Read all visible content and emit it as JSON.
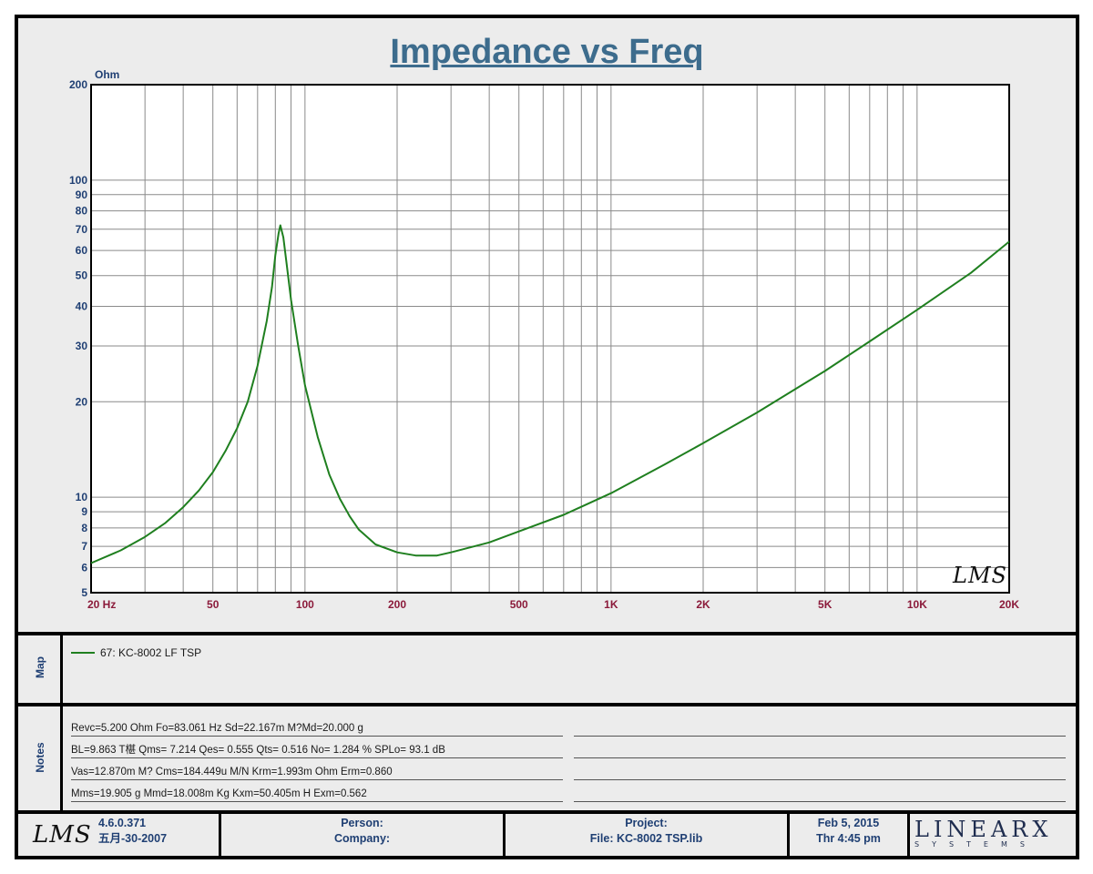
{
  "title": "Impedance vs Freq",
  "chart_data": {
    "type": "line",
    "ylabel": "Ohm",
    "xscale": "log",
    "yscale": "log",
    "xlim": [
      20,
      20000
    ],
    "ylim": [
      5,
      200
    ],
    "grid": true,
    "x_tick_labels": [
      {
        "value": 20,
        "label": "20  Hz"
      },
      {
        "value": 50,
        "label": "50"
      },
      {
        "value": 100,
        "label": "100"
      },
      {
        "value": 200,
        "label": "200"
      },
      {
        "value": 500,
        "label": "500"
      },
      {
        "value": 1000,
        "label": "1K"
      },
      {
        "value": 2000,
        "label": "2K"
      },
      {
        "value": 5000,
        "label": "5K"
      },
      {
        "value": 10000,
        "label": "10K"
      },
      {
        "value": 20000,
        "label": "20K"
      }
    ],
    "y_tick_labels": [
      {
        "value": 5,
        "label": "5"
      },
      {
        "value": 6,
        "label": "6"
      },
      {
        "value": 7,
        "label": "7"
      },
      {
        "value": 8,
        "label": "8"
      },
      {
        "value": 9,
        "label": "9"
      },
      {
        "value": 10,
        "label": "10"
      },
      {
        "value": 20,
        "label": "20"
      },
      {
        "value": 30,
        "label": "30"
      },
      {
        "value": 40,
        "label": "40"
      },
      {
        "value": 50,
        "label": "50"
      },
      {
        "value": 60,
        "label": "60"
      },
      {
        "value": 70,
        "label": "70"
      },
      {
        "value": 80,
        "label": "80"
      },
      {
        "value": 90,
        "label": "90"
      },
      {
        "value": 100,
        "label": "100"
      },
      {
        "value": 200,
        "label": "200"
      }
    ],
    "series": [
      {
        "name": "67: KC-8002 LF  TSP",
        "color": "#1f7f1f",
        "points": [
          [
            20,
            6.2
          ],
          [
            25,
            6.8
          ],
          [
            30,
            7.5
          ],
          [
            35,
            8.3
          ],
          [
            40,
            9.3
          ],
          [
            45,
            10.5
          ],
          [
            50,
            12.0
          ],
          [
            55,
            14.0
          ],
          [
            60,
            16.5
          ],
          [
            65,
            20.0
          ],
          [
            70,
            26.0
          ],
          [
            75,
            36.0
          ],
          [
            78,
            46.0
          ],
          [
            80,
            58.0
          ],
          [
            82,
            68.0
          ],
          [
            83.061,
            72.0
          ],
          [
            85,
            66.0
          ],
          [
            87,
            55.0
          ],
          [
            90,
            42.0
          ],
          [
            95,
            30.0
          ],
          [
            100,
            22.5
          ],
          [
            110,
            15.5
          ],
          [
            120,
            11.8
          ],
          [
            130,
            9.9
          ],
          [
            140,
            8.7
          ],
          [
            150,
            7.9
          ],
          [
            170,
            7.1
          ],
          [
            200,
            6.7
          ],
          [
            230,
            6.55
          ],
          [
            270,
            6.55
          ],
          [
            300,
            6.7
          ],
          [
            400,
            7.2
          ],
          [
            500,
            7.8
          ],
          [
            700,
            8.8
          ],
          [
            1000,
            10.3
          ],
          [
            1500,
            12.7
          ],
          [
            2000,
            14.8
          ],
          [
            3000,
            18.5
          ],
          [
            5000,
            25.0
          ],
          [
            7000,
            31.0
          ],
          [
            10000,
            39.0
          ],
          [
            15000,
            51.0
          ],
          [
            20000,
            64.0
          ]
        ]
      }
    ]
  },
  "watermark": "LMS",
  "map_label": "Map",
  "legend": [
    {
      "label": "67: KC-8002 LF  TSP",
      "color": "#1f7f1f"
    }
  ],
  "notes_label": "Notes",
  "notes": [
    "Revc=5.200 Ohm  Fo=83.061 Hz  Sd=22.167m M?Md=20.000 g",
    "BL=9.863 T椹  Qms= 7.214  Qes= 0.555  Qts= 0.516  No= 1.284 %  SPLo= 93.1 dB",
    "Vas=12.870m M? Cms=184.449u M/N  Krm=1.993m Ohm  Erm=0.860",
    "Mms=19.905 g  Mmd=18.008m Kg  Kxm=50.405m H  Exm=0.562"
  ],
  "footer": {
    "logo": "LMS",
    "version": "4.6.0.371",
    "build_date": "五月-30-2007",
    "person_label": "Person:",
    "company_label": "Company:",
    "project_label": "Project:",
    "file_label": "File: KC-8002 TSP.lib",
    "date": "Feb  5, 2015",
    "time": "Thr  4:45 pm",
    "brand": "LINEARX",
    "brand_sub": "SYSTEMS"
  }
}
